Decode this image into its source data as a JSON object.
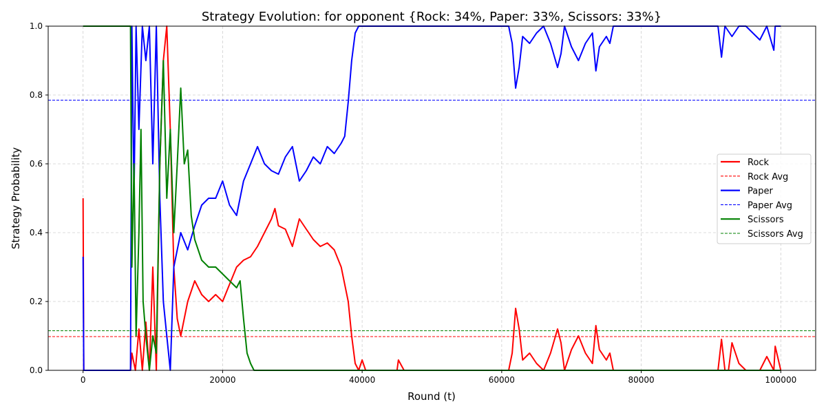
{
  "chart_data": {
    "type": "line",
    "title": "Strategy Evolution: for opponent {Rock: 34%, Paper: 33%, Scissors: 33%}",
    "xlabel": "Round (t)",
    "ylabel": "Strategy Probability",
    "xlim": [
      -5000,
      105000
    ],
    "ylim": [
      0,
      1
    ],
    "x_ticks": [
      0,
      20000,
      40000,
      60000,
      80000,
      100000
    ],
    "x_tick_labels": [
      "0",
      "20000",
      "40000",
      "60000",
      "80000",
      "100000"
    ],
    "y_ticks": [
      0.0,
      0.2,
      0.4,
      0.6,
      0.8,
      1.0
    ],
    "y_tick_labels": [
      "0.0",
      "0.2",
      "0.4",
      "0.6",
      "0.8",
      "1.0"
    ],
    "grid": true,
    "legend_position": "center-right",
    "series": [
      {
        "name": "Rock",
        "color": "#ff0000",
        "style": "solid",
        "x": [
          0,
          100,
          200,
          1200,
          1300,
          6800,
          7000,
          7500,
          8000,
          8500,
          9000,
          9500,
          10000,
          10500,
          11000,
          11500,
          12000,
          12500,
          13000,
          13500,
          14000,
          15000,
          16000,
          17000,
          18000,
          19000,
          20000,
          21000,
          22000,
          23000,
          24000,
          25000,
          26000,
          27000,
          27500,
          28000,
          29000,
          30000,
          31000,
          32000,
          33000,
          34000,
          35000,
          36000,
          37000,
          38000,
          38500,
          39000,
          39500,
          40000,
          40500,
          45000,
          45200,
          46000,
          61000,
          61500,
          62000,
          62500,
          63000,
          64000,
          65000,
          66000,
          67000,
          68000,
          68500,
          69000,
          70000,
          71000,
          72000,
          73000,
          73500,
          74000,
          75000,
          75500,
          76000,
          91000,
          91500,
          92000,
          92500,
          93000,
          94000,
          95000,
          97000,
          98000,
          99000,
          99200,
          100000
        ],
        "values": [
          0.5,
          0.0,
          0.0,
          0.0,
          0.0,
          0.0,
          0.05,
          0.0,
          0.12,
          0.0,
          0.14,
          0.0,
          0.3,
          0.0,
          0.6,
          0.9,
          1.0,
          0.7,
          0.3,
          0.15,
          0.1,
          0.2,
          0.26,
          0.22,
          0.2,
          0.22,
          0.2,
          0.25,
          0.3,
          0.32,
          0.33,
          0.36,
          0.4,
          0.44,
          0.47,
          0.42,
          0.41,
          0.36,
          0.44,
          0.41,
          0.38,
          0.36,
          0.37,
          0.35,
          0.3,
          0.2,
          0.1,
          0.02,
          0.0,
          0.03,
          0.0,
          0.0,
          0.03,
          0.0,
          0.0,
          0.05,
          0.18,
          0.12,
          0.03,
          0.05,
          0.02,
          0.0,
          0.05,
          0.12,
          0.08,
          0.0,
          0.06,
          0.1,
          0.05,
          0.02,
          0.13,
          0.06,
          0.03,
          0.05,
          0.0,
          0.0,
          0.09,
          0.0,
          0.0,
          0.08,
          0.02,
          0.0,
          0.0,
          0.04,
          0.0,
          0.07,
          0.0
        ]
      },
      {
        "name": "Rock Avg",
        "color": "#ff0000",
        "style": "dashed",
        "hline": 0.098
      },
      {
        "name": "Paper",
        "color": "#0000ff",
        "style": "solid",
        "x": [
          0,
          100,
          200,
          1200,
          1300,
          6800,
          7000,
          7300,
          7600,
          8000,
          8500,
          9000,
          9500,
          10000,
          10500,
          11000,
          11500,
          12000,
          12500,
          13000,
          13500,
          14000,
          15000,
          16000,
          17000,
          18000,
          19000,
          20000,
          21000,
          22000,
          23000,
          24000,
          25000,
          26000,
          27000,
          28000,
          29000,
          30000,
          31000,
          32000,
          33000,
          34000,
          35000,
          36000,
          37000,
          37500,
          38000,
          38500,
          39000,
          39500,
          40000,
          41000,
          45000,
          61000,
          61500,
          62000,
          62500,
          63000,
          64000,
          65000,
          66000,
          67000,
          68000,
          68500,
          69000,
          70000,
          71000,
          72000,
          73000,
          73500,
          74000,
          75000,
          75500,
          76000,
          91000,
          91500,
          92000,
          93000,
          94000,
          95000,
          97000,
          98000,
          99000,
          99200,
          100000
        ],
        "values": [
          0.33,
          0.0,
          0.0,
          0.0,
          0.0,
          0.0,
          1.0,
          0.5,
          1.0,
          0.7,
          1.0,
          0.9,
          1.0,
          0.6,
          1.0,
          0.5,
          0.2,
          0.1,
          0.0,
          0.3,
          0.35,
          0.4,
          0.35,
          0.42,
          0.48,
          0.5,
          0.5,
          0.55,
          0.48,
          0.45,
          0.55,
          0.6,
          0.65,
          0.6,
          0.58,
          0.57,
          0.62,
          0.65,
          0.55,
          0.58,
          0.62,
          0.6,
          0.65,
          0.63,
          0.66,
          0.68,
          0.78,
          0.9,
          0.98,
          1.0,
          1.0,
          1.0,
          1.0,
          1.0,
          0.95,
          0.82,
          0.88,
          0.97,
          0.95,
          0.98,
          1.0,
          0.95,
          0.88,
          0.92,
          1.0,
          0.94,
          0.9,
          0.95,
          0.98,
          0.87,
          0.94,
          0.97,
          0.95,
          1.0,
          1.0,
          0.91,
          1.0,
          0.97,
          1.0,
          1.0,
          0.96,
          1.0,
          0.93,
          1.0,
          1.0
        ]
      },
      {
        "name": "Paper Avg",
        "color": "#0000ff",
        "style": "dashed",
        "hline": 0.785
      },
      {
        "name": "Scissors",
        "color": "#008000",
        "style": "solid",
        "x": [
          0,
          100,
          200,
          1200,
          1300,
          6800,
          7000,
          7300,
          7600,
          8000,
          8300,
          8600,
          9000,
          9500,
          10000,
          10500,
          11000,
          11500,
          12000,
          12500,
          13000,
          13500,
          14000,
          14500,
          15000,
          15500,
          16000,
          17000,
          18000,
          19000,
          20000,
          21000,
          22000,
          22500,
          23000,
          23500,
          24000,
          24500,
          25000,
          100000
        ],
        "values": [
          1.0,
          1.0,
          1.0,
          1.0,
          1.0,
          1.0,
          0.3,
          0.6,
          0.1,
          0.4,
          0.7,
          0.2,
          0.1,
          0.0,
          0.1,
          0.05,
          0.6,
          0.9,
          0.5,
          0.7,
          0.4,
          0.6,
          0.82,
          0.6,
          0.64,
          0.45,
          0.38,
          0.32,
          0.3,
          0.3,
          0.28,
          0.26,
          0.24,
          0.26,
          0.15,
          0.05,
          0.02,
          0.0,
          0.0,
          0.0
        ]
      },
      {
        "name": "Scissors Avg",
        "color": "#008000",
        "style": "dashed",
        "hline": 0.115
      }
    ]
  }
}
